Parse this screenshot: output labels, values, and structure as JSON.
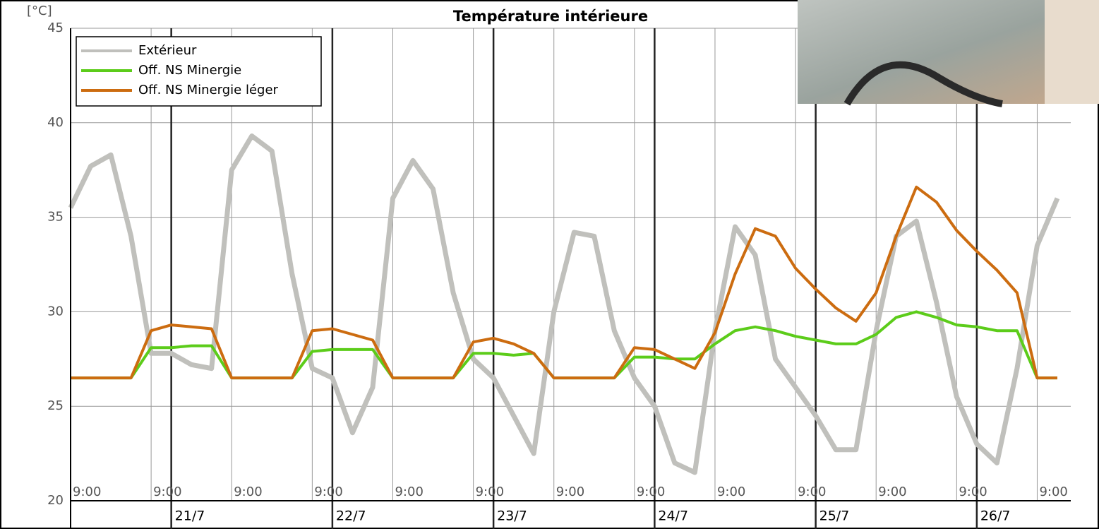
{
  "chart_data": {
    "type": "line",
    "title": "Température intérieure",
    "y_label": "[°C]",
    "x": [
      0,
      3,
      6,
      9,
      12,
      15,
      18,
      21,
      24,
      27,
      30,
      33,
      36,
      39,
      42,
      45,
      48,
      51,
      54,
      57,
      60,
      63,
      66,
      69,
      72,
      75,
      78,
      81,
      84,
      87,
      90,
      93,
      96,
      99,
      102,
      105,
      108,
      111,
      114,
      117,
      120,
      123,
      126,
      129,
      132,
      135,
      138,
      141,
      144,
      147
    ],
    "xlim": [
      0,
      149
    ],
    "xticks": [
      {
        "value": 0,
        "label": "9:00"
      },
      {
        "value": 12,
        "label": "9:00"
      },
      {
        "value": 24,
        "label": "9:00"
      },
      {
        "value": 36,
        "label": "9:00"
      },
      {
        "value": 48,
        "label": "9:00"
      },
      {
        "value": 60,
        "label": "9:00"
      },
      {
        "value": 72,
        "label": "9:00"
      },
      {
        "value": 84,
        "label": "9:00"
      },
      {
        "value": 96,
        "label": "9:00"
      },
      {
        "value": 108,
        "label": "9:00"
      },
      {
        "value": 120,
        "label": "9:00"
      },
      {
        "value": 132,
        "label": "9:00"
      },
      {
        "value": 144,
        "label": "9:00"
      }
    ],
    "date_ticks": [
      {
        "value": 15,
        "label": "21/7"
      },
      {
        "value": 39,
        "label": "22/7"
      },
      {
        "value": 63,
        "label": "23/7"
      },
      {
        "value": 87,
        "label": "24/7"
      },
      {
        "value": 111,
        "label": "25/7"
      },
      {
        "value": 135,
        "label": "26/7"
      }
    ],
    "ylim": [
      20,
      45
    ],
    "yticks": [
      20,
      25,
      30,
      35,
      40,
      45
    ],
    "grid": true,
    "legend": "top-left",
    "series": [
      {
        "name": "Extérieur",
        "color": "#c0c0bc",
        "width": 7,
        "values": [
          35.5,
          37.7,
          38.3,
          34,
          27.8,
          27.8,
          27.2,
          27,
          37.5,
          39.3,
          38.5,
          32,
          27,
          26.5,
          23.6,
          26,
          36,
          38,
          36.5,
          31,
          27.5,
          26.5,
          24.5,
          22.5,
          30,
          34.2,
          34,
          29,
          26.5,
          25,
          22,
          21.5,
          29,
          34.5,
          33,
          27.5,
          26,
          24.5,
          22.7,
          22.7,
          29,
          34,
          34.8,
          30.5,
          25.5,
          23,
          22,
          27,
          33.5,
          36
        ]
      },
      {
        "name": "Off. NS Minergie",
        "color": "#5ccc1a",
        "width": 4,
        "values": [
          26.5,
          26.5,
          26.5,
          26.5,
          28.1,
          28.1,
          28.2,
          28.2,
          26.5,
          26.5,
          26.5,
          26.5,
          27.9,
          28,
          28,
          28,
          26.5,
          26.5,
          26.5,
          26.5,
          27.8,
          27.8,
          27.7,
          27.8,
          26.5,
          26.5,
          26.5,
          26.5,
          27.6,
          27.6,
          27.5,
          27.5,
          28.3,
          29,
          29.2,
          29,
          28.7,
          28.5,
          28.3,
          28.3,
          28.8,
          29.7,
          30,
          29.7,
          29.3,
          29.2,
          29,
          29,
          26.5,
          26.5
        ]
      },
      {
        "name": "Off. NS Minergie léger",
        "color": "#cc6c10",
        "width": 4,
        "values": [
          26.5,
          26.5,
          26.5,
          26.5,
          29,
          29.3,
          29.2,
          29.1,
          26.5,
          26.5,
          26.5,
          26.5,
          29,
          29.1,
          28.8,
          28.5,
          26.5,
          26.5,
          26.5,
          26.5,
          28.4,
          28.6,
          28.3,
          27.8,
          26.5,
          26.5,
          26.5,
          26.5,
          28.1,
          28,
          27.5,
          27,
          28.9,
          32,
          34.4,
          34,
          32.3,
          31.2,
          30.2,
          29.5,
          31,
          34,
          36.6,
          35.8,
          34.3,
          33.2,
          32.2,
          31,
          26.5,
          26.5
        ]
      }
    ]
  }
}
